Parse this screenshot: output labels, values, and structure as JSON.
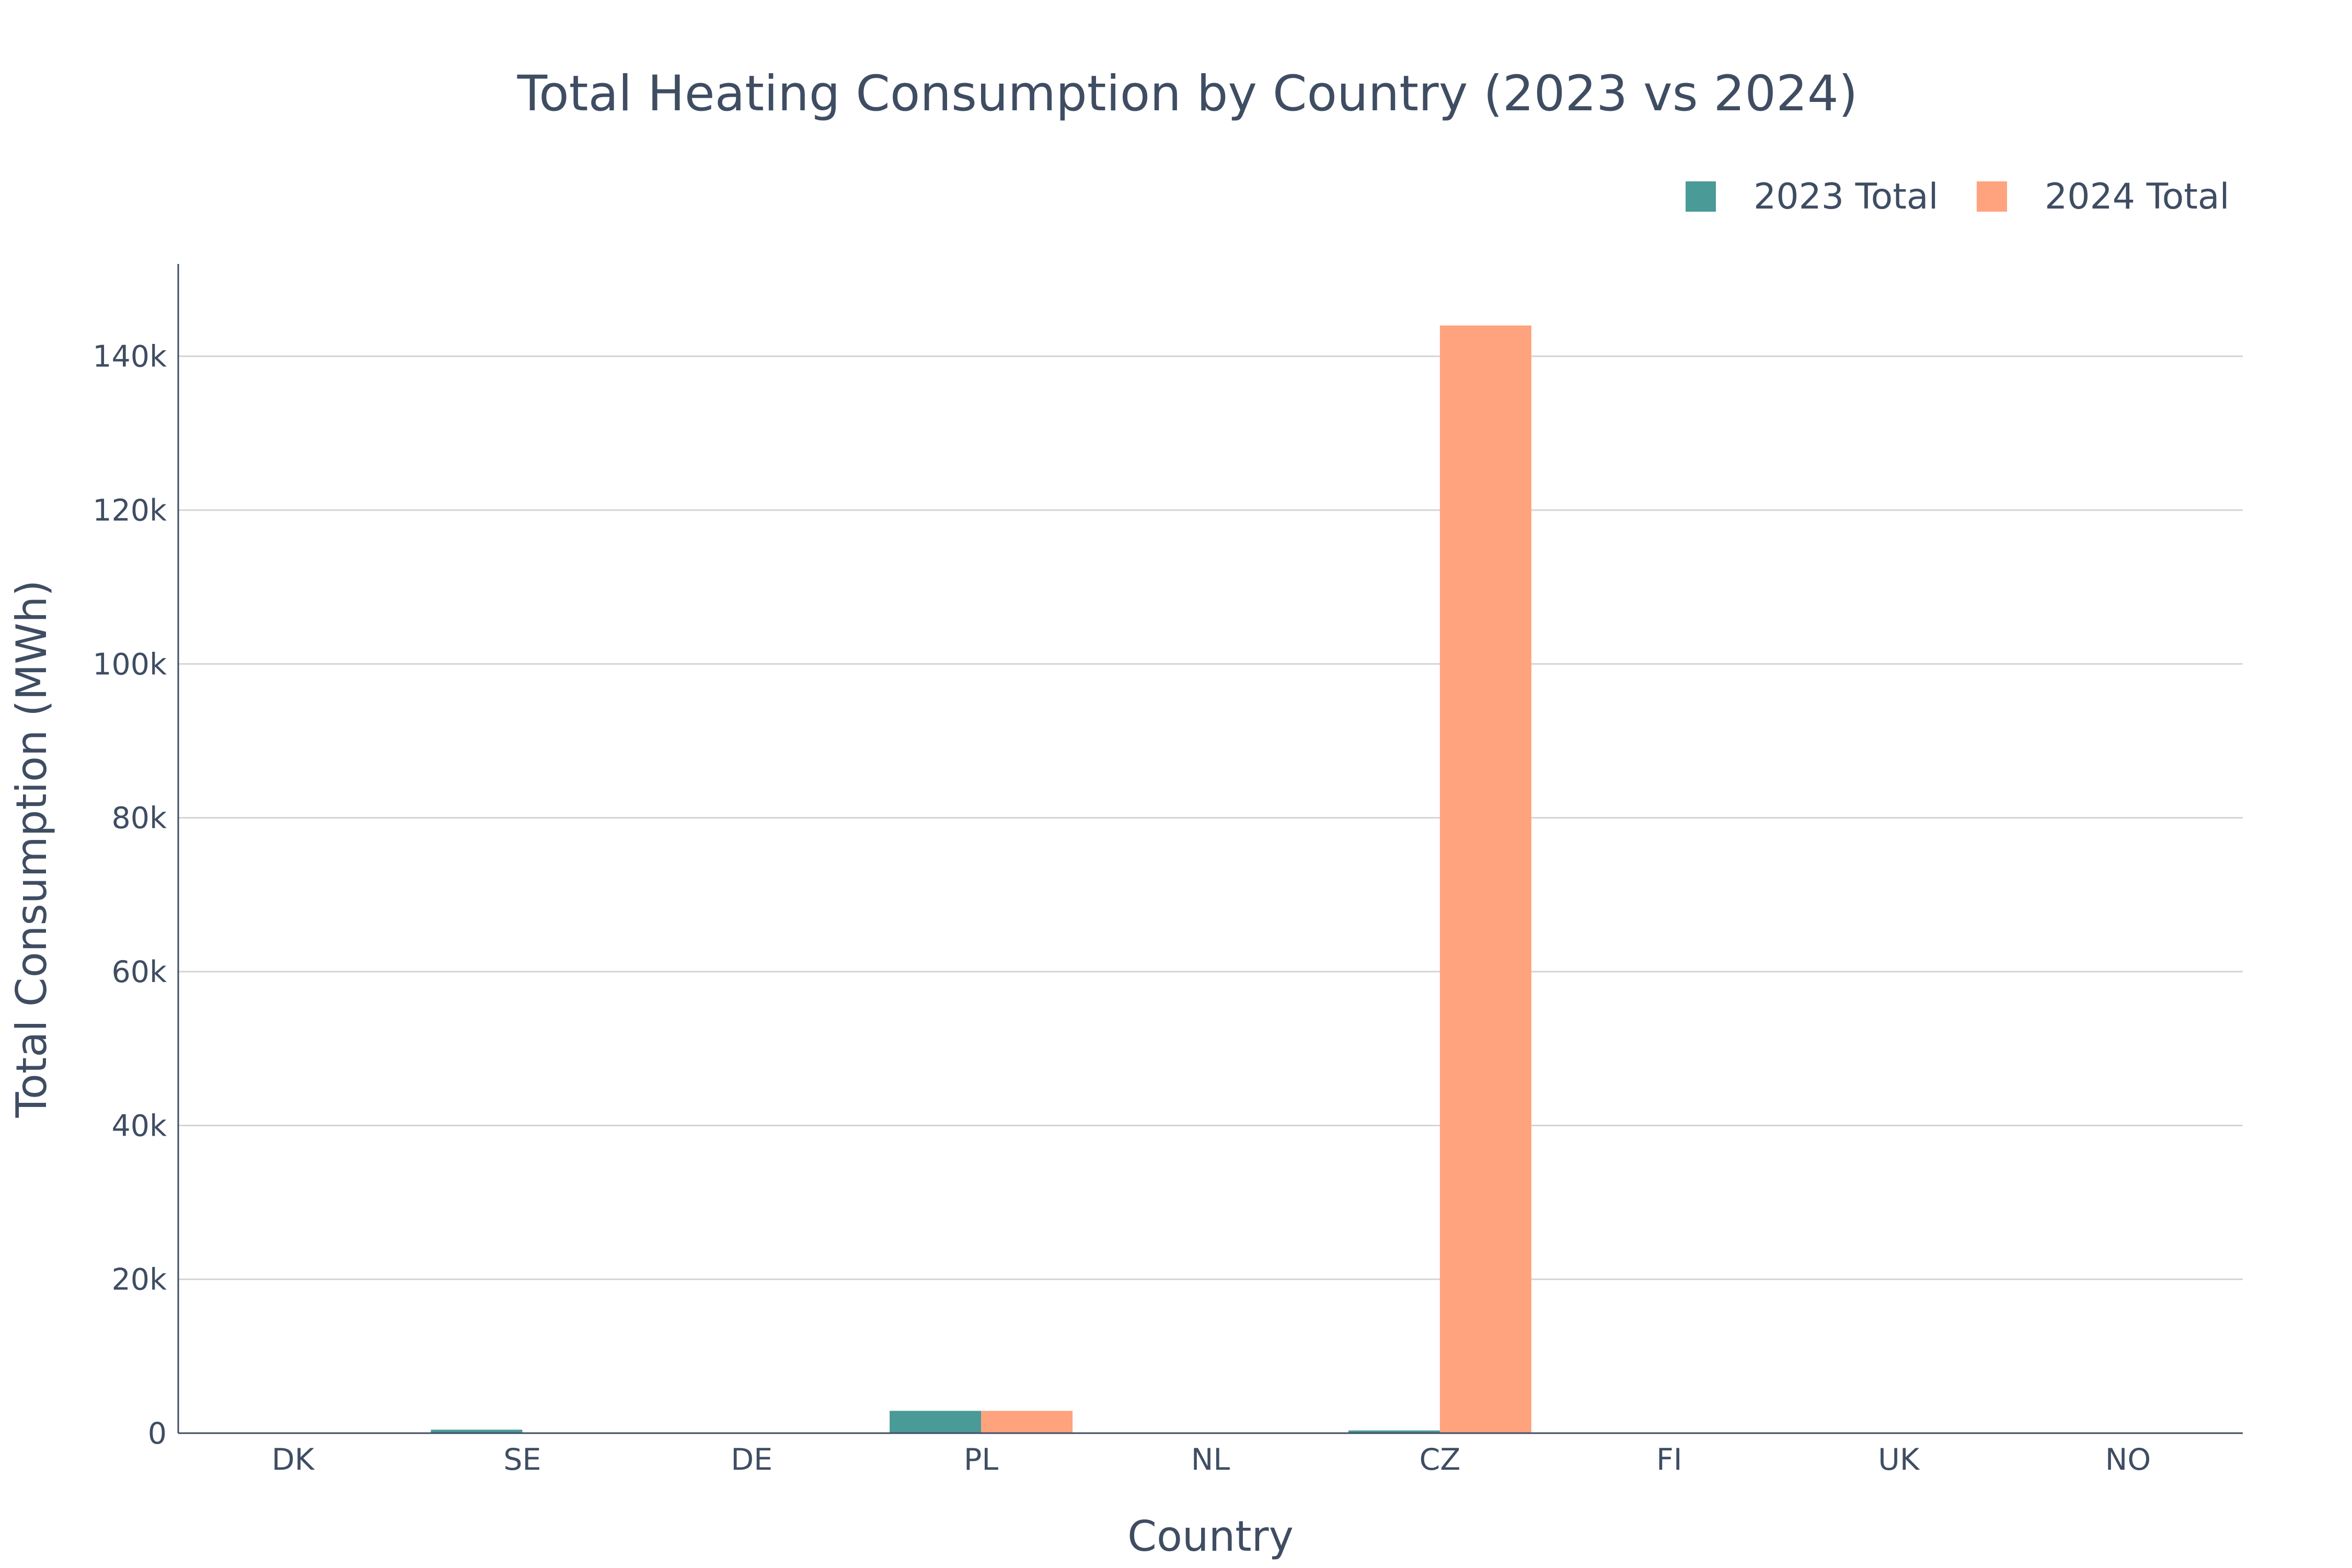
{
  "chart_data": {
    "type": "bar",
    "title": "Total Heating Consumption by Country (2023 vs 2024)",
    "xlabel": "Country",
    "ylabel": "Total Consumption (MWh)",
    "categories": [
      "DK",
      "SE",
      "DE",
      "PL",
      "NL",
      "CZ",
      "FI",
      "UK",
      "NO"
    ],
    "series": [
      {
        "name": "2023 Total",
        "color": "#4a9a97",
        "values": [
          80,
          450,
          40,
          2900,
          30,
          350,
          30,
          60,
          20
        ]
      },
      {
        "name": "2024 Total",
        "color": "#ffa37f",
        "values": [
          0,
          0,
          0,
          2900,
          0,
          144000,
          0,
          0,
          0
        ]
      }
    ],
    "ylim": [
      0,
      152000
    ],
    "yticks": [
      0,
      20000,
      40000,
      60000,
      80000,
      100000,
      120000,
      140000
    ],
    "ytick_labels": [
      "0",
      "20k",
      "40k",
      "60k",
      "80k",
      "100k",
      "120k",
      "140k"
    ],
    "grid": true,
    "legend_position": "top-right",
    "colors": {
      "text": "#3f4d63",
      "grid": "#d4d4d4",
      "axis": "#3f4d63"
    }
  }
}
